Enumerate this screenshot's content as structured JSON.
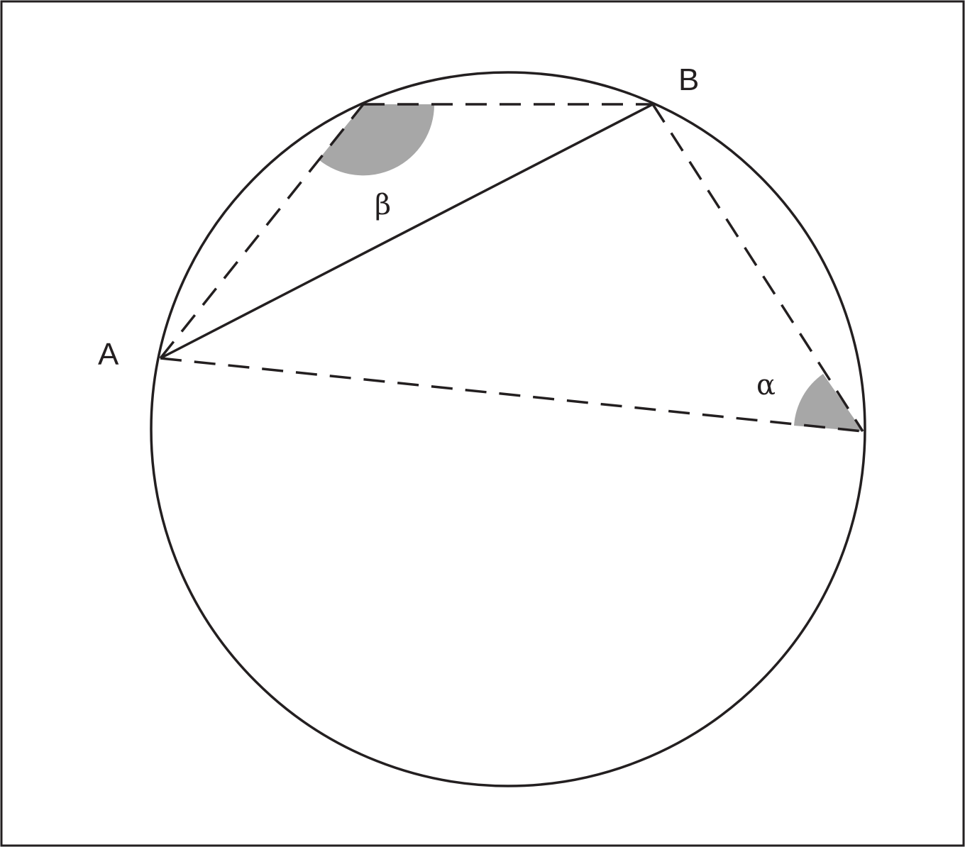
{
  "diagram": {
    "labels": {
      "point_a": "A",
      "point_b": "B",
      "angle_beta": "β",
      "angle_alpha": "α"
    },
    "colors": {
      "stroke": "#231f20",
      "angle_fill": "#a7a7a7",
      "background": "#ffffff"
    }
  }
}
